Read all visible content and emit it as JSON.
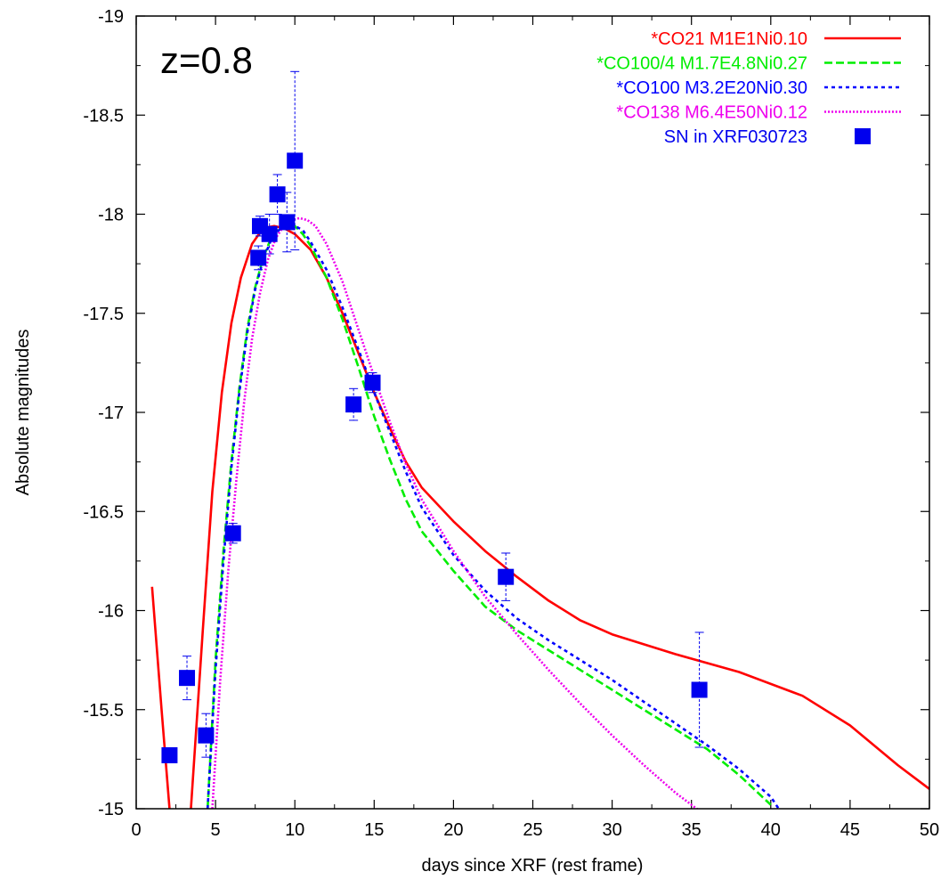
{
  "chart_data": {
    "type": "line",
    "xlabel": "days since XRF (rest frame)",
    "ylabel": "Absolute magnitudes",
    "annotation": "z=0.8",
    "xlim": [
      0,
      50
    ],
    "ylim": [
      -15,
      -19
    ],
    "y_inverted": true,
    "x_ticks": [
      0,
      5,
      10,
      15,
      20,
      25,
      30,
      35,
      40,
      45,
      50
    ],
    "y_ticks": [
      -15,
      -15.5,
      -16,
      -16.5,
      -17,
      -17.5,
      -18,
      -18.5,
      -19
    ],
    "x_tick_labels": [
      "0",
      "5",
      "10",
      "15",
      "20",
      "25",
      "30",
      "35",
      "40",
      "45",
      "50"
    ],
    "y_tick_labels": [
      "-15",
      "-15.5",
      "-16",
      "-16.5",
      "-17",
      "-17.5",
      "-18",
      "-18.5",
      "-19"
    ],
    "grid": false,
    "legend_position": "top-right",
    "series": [
      {
        "name": "*CO21 M1E1Ni0.10",
        "color": "#ff0000",
        "dash": "solid",
        "x": [
          1.0,
          1.6,
          2.2,
          2.7,
          3.2,
          3.7,
          4.2,
          4.8,
          5.4,
          6.0,
          6.6,
          7.3,
          8.0,
          8.7,
          9.3,
          10.0,
          11.0,
          12.0,
          13.0,
          14.0,
          15.0,
          16.0,
          17.0,
          18.0,
          20.0,
          22.0,
          24.0,
          26.0,
          28.0,
          30.0,
          34.0,
          38.0,
          42.0,
          45.0,
          48.0,
          50.0
        ],
        "y": [
          -16.12,
          -15.5,
          -14.9,
          -14.5,
          -14.7,
          -15.3,
          -15.9,
          -16.6,
          -17.1,
          -17.45,
          -17.68,
          -17.85,
          -17.93,
          -17.94,
          -17.93,
          -17.9,
          -17.82,
          -17.68,
          -17.5,
          -17.3,
          -17.1,
          -16.92,
          -16.75,
          -16.62,
          -16.45,
          -16.3,
          -16.17,
          -16.05,
          -15.95,
          -15.88,
          -15.78,
          -15.69,
          -15.57,
          -15.42,
          -15.22,
          -15.1
        ]
      },
      {
        "name": "*CO100/4 M1.7E4.8Ni0.27",
        "color": "#00ee00",
        "dash": "dashed",
        "x": [
          4.5,
          5.0,
          5.5,
          6.0,
          6.5,
          7.0,
          7.5,
          8.0,
          8.5,
          9.0,
          9.5,
          10.0,
          10.5,
          11.0,
          12.0,
          13.0,
          14.0,
          15.0,
          16.0,
          17.0,
          18.0,
          20.0,
          22.0,
          24.0,
          26.0,
          28.0,
          30.0,
          32.0,
          34.0,
          36.0,
          38.0,
          40.0
        ],
        "y": [
          -15.0,
          -15.75,
          -16.3,
          -16.75,
          -17.12,
          -17.42,
          -17.63,
          -17.78,
          -17.88,
          -17.93,
          -17.95,
          -17.94,
          -17.9,
          -17.84,
          -17.68,
          -17.47,
          -17.23,
          -16.98,
          -16.76,
          -16.56,
          -16.4,
          -16.2,
          -16.02,
          -15.9,
          -15.8,
          -15.7,
          -15.6,
          -15.5,
          -15.4,
          -15.3,
          -15.17,
          -15.02
        ]
      },
      {
        "name": "*CO100 M3.2E20Ni0.30",
        "color": "#0000ff",
        "dash": "dotted",
        "x": [
          4.5,
          5.0,
          5.5,
          6.0,
          6.5,
          7.0,
          7.5,
          8.0,
          8.5,
          9.0,
          9.5,
          10.0,
          10.5,
          11.0,
          12.0,
          13.0,
          14.0,
          15.0,
          16.0,
          17.0,
          18.0,
          20.0,
          22.0,
          24.0,
          26.0,
          28.0,
          30.0,
          32.0,
          34.0,
          36.0,
          38.0,
          40.0,
          40.5
        ],
        "y": [
          -15.0,
          -15.7,
          -16.25,
          -16.72,
          -17.1,
          -17.4,
          -17.62,
          -17.77,
          -17.87,
          -17.92,
          -17.94,
          -17.94,
          -17.92,
          -17.86,
          -17.72,
          -17.53,
          -17.32,
          -17.1,
          -16.9,
          -16.7,
          -16.52,
          -16.28,
          -16.1,
          -15.96,
          -15.85,
          -15.75,
          -15.65,
          -15.54,
          -15.43,
          -15.32,
          -15.2,
          -15.06,
          -15.0
        ]
      },
      {
        "name": "*CO138 M6.4E50Ni0.12",
        "color": "#ee00ee",
        "dash": "dense-dotted",
        "x": [
          4.8,
          5.3,
          5.8,
          6.3,
          6.8,
          7.3,
          7.8,
          8.3,
          8.8,
          9.3,
          9.8,
          10.3,
          10.8,
          11.3,
          12.0,
          13.0,
          14.0,
          15.0,
          16.0,
          17.0,
          18.0,
          20.0,
          22.0,
          24.0,
          26.0,
          28.0,
          30.0,
          32.0,
          34.0,
          36.0
        ],
        "y": [
          -15.0,
          -15.65,
          -16.2,
          -16.65,
          -17.05,
          -17.37,
          -17.6,
          -17.77,
          -17.88,
          -17.94,
          -17.97,
          -17.98,
          -17.97,
          -17.94,
          -17.85,
          -17.66,
          -17.42,
          -17.18,
          -16.95,
          -16.74,
          -16.56,
          -16.3,
          -16.07,
          -15.88,
          -15.7,
          -15.53,
          -15.37,
          -15.22,
          -15.08,
          -14.96
        ]
      }
    ],
    "observations": {
      "name": "SN in XRF030723",
      "color": "#0000ee",
      "points": [
        {
          "x": 2.1,
          "y": -15.27,
          "err": 0.03
        },
        {
          "x": 3.2,
          "y": -15.66,
          "err": 0.11
        },
        {
          "x": 4.4,
          "y": -15.37,
          "err": 0.11
        },
        {
          "x": 6.1,
          "y": -16.39,
          "err": 0.05
        },
        {
          "x": 7.7,
          "y": -17.78,
          "err": 0.06
        },
        {
          "x": 7.8,
          "y": -17.94,
          "err": 0.05
        },
        {
          "x": 8.4,
          "y": -17.9,
          "err": 0.1
        },
        {
          "x": 8.9,
          "y": -18.1,
          "err": 0.1
        },
        {
          "x": 9.5,
          "y": -17.96,
          "err": 0.15
        },
        {
          "x": 10.0,
          "y": -18.27,
          "err": 0.45
        },
        {
          "x": 13.7,
          "y": -17.04,
          "err": 0.08
        },
        {
          "x": 14.9,
          "y": -17.15,
          "err": 0.05
        },
        {
          "x": 23.3,
          "y": -16.17,
          "err": 0.12
        },
        {
          "x": 35.5,
          "y": -15.6,
          "err": 0.29
        }
      ]
    }
  }
}
